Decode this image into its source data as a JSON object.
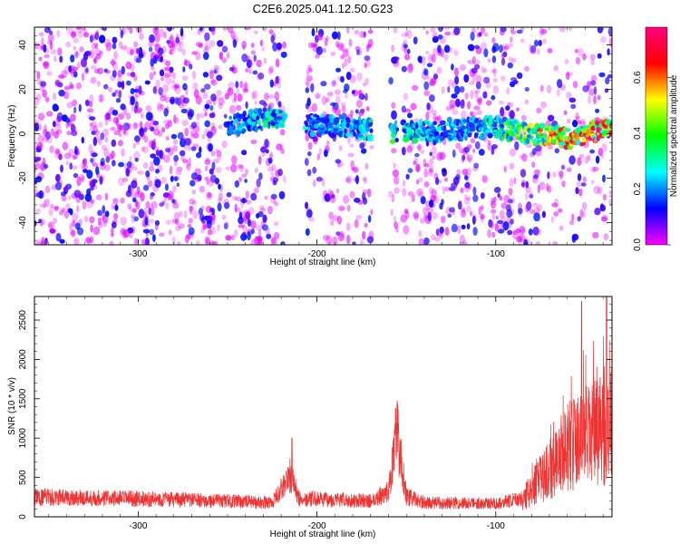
{
  "title": "C2E6.2025.041.12.50.G23",
  "chart_data": [
    {
      "type": "heatmap",
      "xlabel": "Height of straight line (km)",
      "ylabel": "Frequency (Hz)",
      "xlim": [
        -358,
        -35
      ],
      "ylim": [
        -50,
        48
      ],
      "x_ticks": [
        -300,
        -200,
        -100
      ],
      "x_tick_labels": [
        "-300",
        "-200",
        "-100"
      ],
      "y_ticks": [
        -40,
        -20,
        0,
        20,
        40
      ],
      "y_tick_labels": [
        "-40",
        "-20",
        "0",
        "20",
        "40"
      ],
      "grid": false,
      "colorbar": {
        "label": "Normalized spectral amplitude",
        "range": [
          0.0,
          0.78
        ],
        "ticks": [
          0.0,
          0.2,
          0.4,
          0.6
        ],
        "tick_labels": [
          "0.0",
          "0.2",
          "0.4",
          "0.6"
        ],
        "colormap": [
          "#ff00ff",
          "#0000ff",
          "#00ffff",
          "#00ff00",
          "#ffff00",
          "#ff0000",
          "#ff0080"
        ]
      },
      "data_gaps_km": [
        [
          -218,
          -206
        ],
        [
          -169,
          -159
        ],
        [
          -155,
          -152
        ]
      ],
      "ridge": {
        "description_values": [
          {
            "x": -245,
            "freq": 4,
            "amp": 0.2
          },
          {
            "x": -235,
            "freq": 6,
            "amp": 0.25
          },
          {
            "x": -225,
            "freq": 7,
            "amp": 0.3
          },
          {
            "x": -200,
            "freq": 4,
            "amp": 0.2
          },
          {
            "x": -180,
            "freq": 3,
            "amp": 0.22
          },
          {
            "x": -160,
            "freq": 1,
            "amp": 0.35
          },
          {
            "x": -140,
            "freq": 1,
            "amp": 0.25
          },
          {
            "x": -120,
            "freq": 2,
            "amp": 0.2
          },
          {
            "x": -100,
            "freq": 3,
            "amp": 0.3
          },
          {
            "x": -80,
            "freq": 0,
            "amp": 0.45
          },
          {
            "x": -60,
            "freq": -2,
            "amp": 0.55
          },
          {
            "x": -40,
            "freq": 2,
            "amp": 0.65
          }
        ]
      },
      "noise_amp_range": [
        0.0,
        0.12
      ]
    },
    {
      "type": "line",
      "xlabel": "Height of straight line (km)",
      "ylabel": "SNR (10 * v/v)",
      "xlim": [
        -358,
        -35
      ],
      "ylim": [
        0,
        2800
      ],
      "x_ticks": [
        -300,
        -200,
        -100
      ],
      "x_tick_labels": [
        "-300",
        "-200",
        "-100"
      ],
      "y_ticks": [
        0,
        500,
        1000,
        1500,
        2000,
        2500
      ],
      "y_tick_labels": [
        "0",
        "500",
        "1000",
        "1500",
        "2000",
        "2500"
      ],
      "grid": false,
      "color": "#ee3333",
      "series": [
        {
          "baseline_points": [
            {
              "x": -358,
              "y": 250
            },
            {
              "x": -300,
              "y": 230
            },
            {
              "x": -250,
              "y": 200
            },
            {
              "x": -225,
              "y": 180
            },
            {
              "x": -215,
              "y": 520
            },
            {
              "x": -210,
              "y": 230
            },
            {
              "x": -170,
              "y": 200
            },
            {
              "x": -160,
              "y": 320
            },
            {
              "x": -155,
              "y": 1050
            },
            {
              "x": -150,
              "y": 260
            },
            {
              "x": -140,
              "y": 180
            },
            {
              "x": -100,
              "y": 170
            },
            {
              "x": -85,
              "y": 230
            },
            {
              "x": -70,
              "y": 600
            },
            {
              "x": -60,
              "y": 900
            },
            {
              "x": -50,
              "y": 1000
            },
            {
              "x": -40,
              "y": 1100
            },
            {
              "x": -35,
              "y": 1200
            }
          ],
          "peaks": [
            {
              "x": -214,
              "y": 1000
            },
            {
              "x": -156,
              "y": 1380
            },
            {
              "x": -52,
              "y": 2740
            },
            {
              "x": -38,
              "y": 2790
            }
          ]
        }
      ]
    }
  ]
}
